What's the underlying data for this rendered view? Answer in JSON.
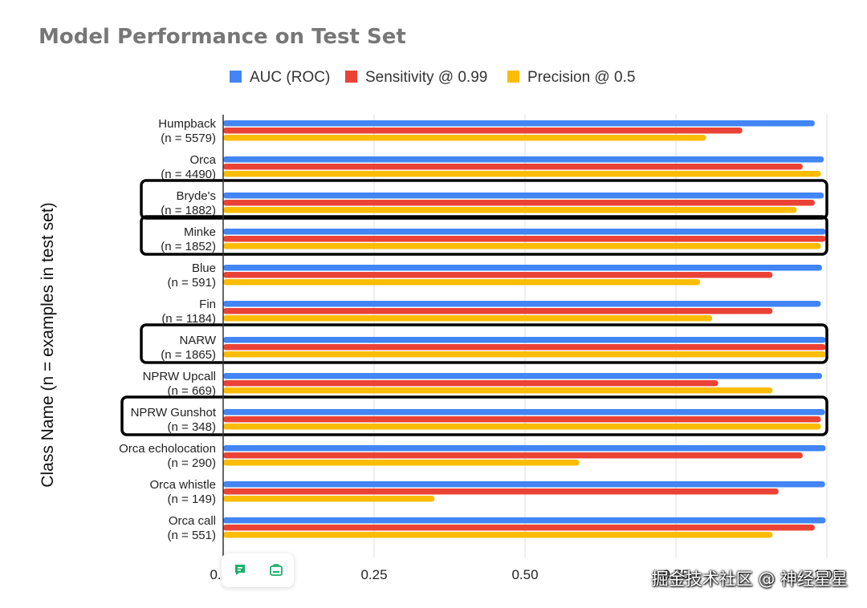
{
  "chart_data": {
    "type": "bar",
    "orientation": "horizontal",
    "title": "Model Performance on Test Set",
    "ylabel": "Class Name (n = examples in test set)",
    "xlabel": "",
    "xlim": [
      0,
      1
    ],
    "xticks": [
      "0.00",
      "0.25",
      "0.50",
      "0.75",
      "1.00"
    ],
    "grid": true,
    "legend_position": "top",
    "categories": [
      {
        "name": "Humpback",
        "n": "(n = 5579)"
      },
      {
        "name": "Orca",
        "n": "(n = 4490)"
      },
      {
        "name": "Bryde's",
        "n": "(n = 1882)"
      },
      {
        "name": "Minke",
        "n": "(n = 1852)"
      },
      {
        "name": "Blue",
        "n": "(n = 591)"
      },
      {
        "name": "Fin",
        "n": "(n = 1184)"
      },
      {
        "name": "NARW",
        "n": "(n = 1865)"
      },
      {
        "name": "NPRW Upcall",
        "n": "(n = 669)"
      },
      {
        "name": "NPRW Gunshot",
        "n": "(n = 348)"
      },
      {
        "name": "Orca echolocation",
        "n": "(n = 290)"
      },
      {
        "name": "Orca whistle",
        "n": "(n = 149)"
      },
      {
        "name": "Orca call",
        "n": "(n = 551)"
      }
    ],
    "series": [
      {
        "name": "AUC (ROC)",
        "color": "#4285f4",
        "values": [
          0.98,
          0.995,
          0.995,
          0.998,
          0.992,
          0.99,
          0.998,
          0.992,
          0.997,
          0.998,
          0.997,
          0.998
        ]
      },
      {
        "name": "Sensitivity @ 0.99",
        "color": "#ea4335",
        "values": [
          0.86,
          0.96,
          0.98,
          0.998,
          0.91,
          0.91,
          0.998,
          0.82,
          0.99,
          0.96,
          0.92,
          0.98
        ]
      },
      {
        "name": "Precision @ 0.5",
        "color": "#fbbc04",
        "values": [
          0.8,
          0.99,
          0.95,
          0.99,
          0.79,
          0.81,
          0.998,
          0.91,
          0.99,
          0.59,
          0.35,
          0.91
        ]
      }
    ],
    "highlighted_categories": [
      "Bryde's",
      "Minke",
      "NARW",
      "NPRW Gunshot"
    ]
  },
  "toolbar": {
    "icons": [
      "comment-icon",
      "screenshot-icon"
    ],
    "accent_color": "#1aaf6a"
  },
  "watermark": "掘金技术社区 @ 神经星星"
}
